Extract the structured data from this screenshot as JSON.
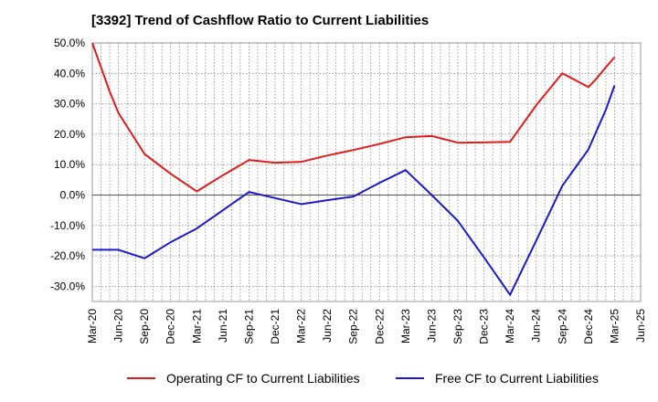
{
  "chart_data": {
    "type": "line",
    "title": "[3392]  Trend of Cashflow Ratio to Current Liabilities",
    "xlabel": "",
    "ylabel": "",
    "ylim": [
      -35,
      50
    ],
    "yticks": [
      50,
      40,
      30,
      20,
      10,
      0,
      -10,
      -20,
      -30
    ],
    "ytick_labels": [
      "50.0%",
      "40.0%",
      "30.0%",
      "20.0%",
      "10.0%",
      "0.0%",
      "-10.0%",
      "-20.0%",
      "-30.0%"
    ],
    "categories": [
      "Mar-20",
      "Jun-20",
      "Sep-20",
      "Dec-20",
      "Mar-21",
      "Jun-21",
      "Sep-21",
      "Dec-21",
      "Mar-22",
      "Jun-22",
      "Sep-22",
      "Dec-22",
      "Mar-23",
      "Jun-23",
      "Sep-23",
      "Dec-23",
      "Mar-24",
      "Jun-24",
      "Sep-24",
      "Dec-24",
      "Mar-25",
      "Jun-25"
    ],
    "grid": true,
    "legend_position": "bottom",
    "series": [
      {
        "name": "Operating CF to Current Liabilities",
        "color": "#e41a1a",
        "points": [
          [
            "Mar-20",
            50.0
          ],
          [
            "Apr-20",
            42.0
          ],
          [
            "May-20",
            34.0
          ],
          [
            "Jun-20",
            27.0
          ],
          [
            "Sep-20",
            13.5
          ],
          [
            "Dec-20",
            7.0
          ],
          [
            "Mar-21",
            1.2
          ],
          [
            "Jun-21",
            6.5
          ],
          [
            "Sep-21",
            11.5
          ],
          [
            "Dec-21",
            10.6
          ],
          [
            "Mar-22",
            10.9
          ],
          [
            "Jun-22",
            13.0
          ],
          [
            "Sep-22",
            14.8
          ],
          [
            "Dec-22",
            16.8
          ],
          [
            "Mar-23",
            19.0
          ],
          [
            "Jun-23",
            19.4
          ],
          [
            "Sep-23",
            17.2
          ],
          [
            "Dec-23",
            17.3
          ],
          [
            "Mar-24",
            17.5
          ],
          [
            "Jun-24",
            29.5
          ],
          [
            "Sep-24",
            40.0
          ],
          [
            "Dec-24",
            35.5
          ],
          [
            "Jan-25",
            38.5
          ],
          [
            "Feb-25",
            42.0
          ],
          [
            "Mar-25",
            45.3
          ]
        ]
      },
      {
        "name": "Free CF to Current Liabilities",
        "color": "#1a1acc",
        "points": [
          [
            "Mar-20",
            -18.0
          ],
          [
            "Jun-20",
            -18.0
          ],
          [
            "Sep-20",
            -20.8
          ],
          [
            "Dec-20",
            -15.5
          ],
          [
            "Mar-21",
            -11.0
          ],
          [
            "Jun-21",
            -5.0
          ],
          [
            "Sep-21",
            1.0
          ],
          [
            "Dec-21",
            -1.0
          ],
          [
            "Mar-22",
            -3.0
          ],
          [
            "Jun-22",
            -1.7
          ],
          [
            "Sep-22",
            -0.5
          ],
          [
            "Dec-22",
            4.0
          ],
          [
            "Mar-23",
            8.2
          ],
          [
            "Jun-23",
            0.0
          ],
          [
            "Sep-23",
            -8.5
          ],
          [
            "Dec-23",
            -20.5
          ],
          [
            "Mar-24",
            -32.8
          ],
          [
            "Jun-24",
            -15.0
          ],
          [
            "Sep-24",
            3.0
          ],
          [
            "Dec-24",
            15.0
          ],
          [
            "Jan-25",
            21.5
          ],
          [
            "Feb-25",
            28.0
          ],
          [
            "Mar-25",
            36.0
          ]
        ]
      }
    ]
  }
}
